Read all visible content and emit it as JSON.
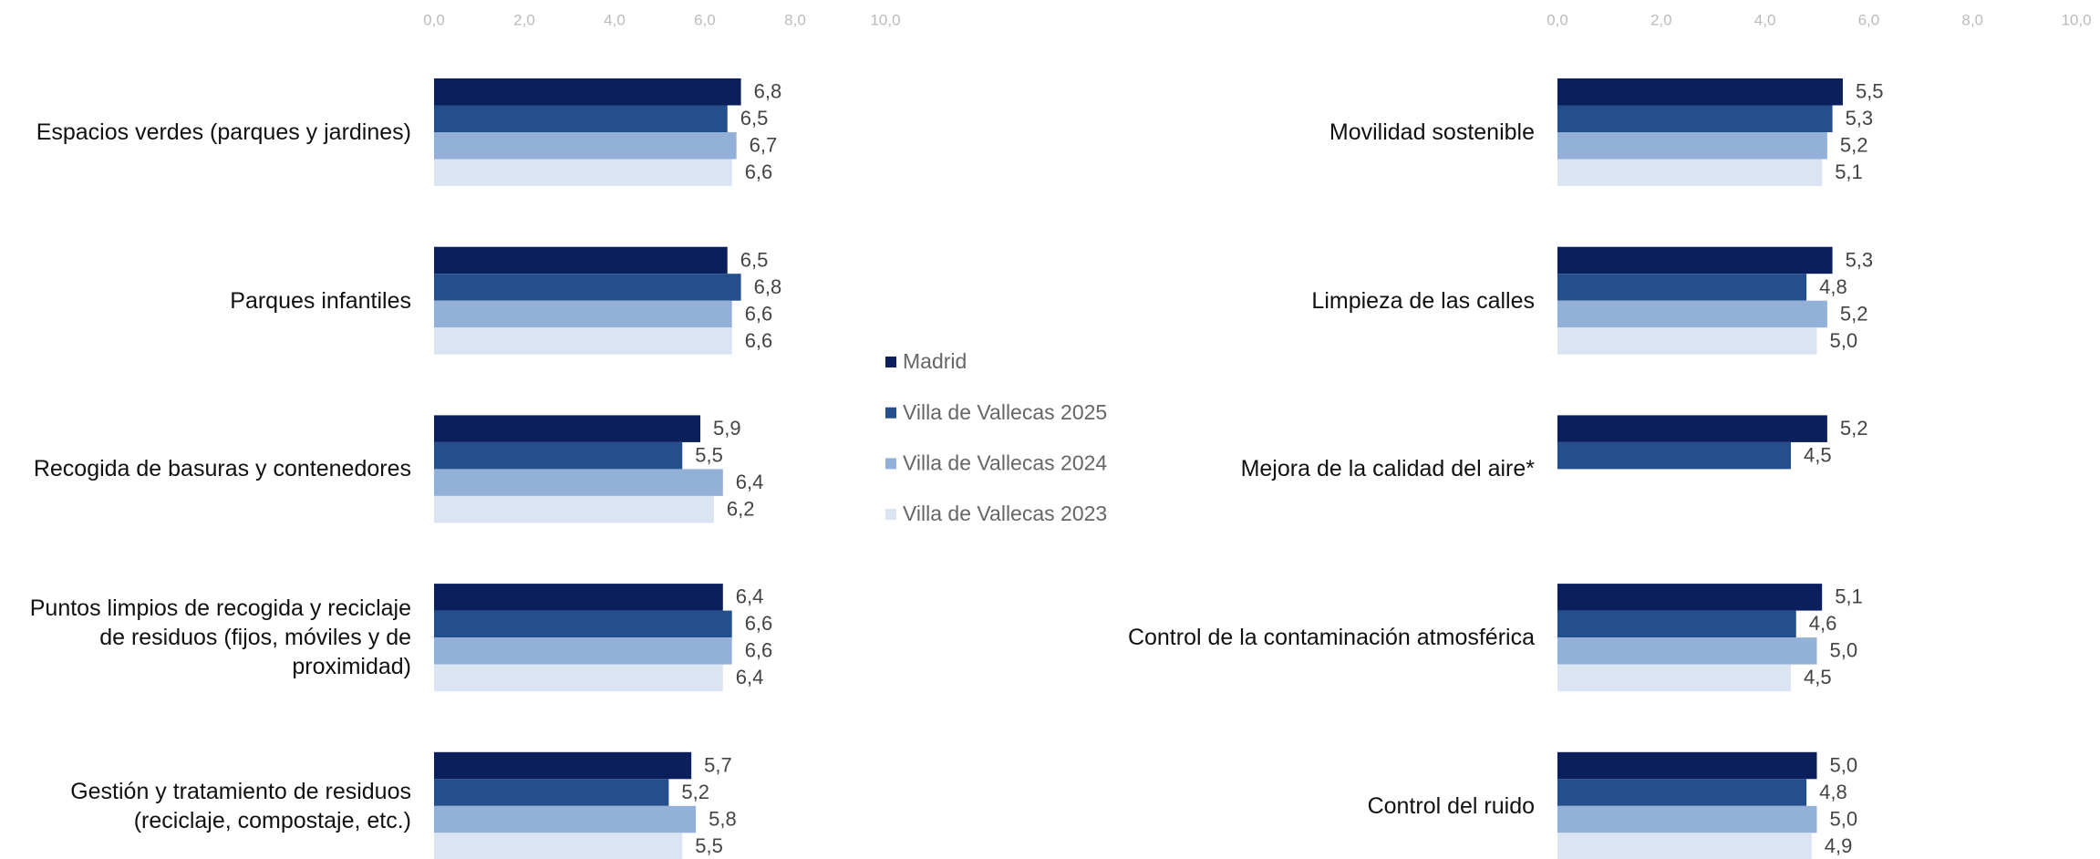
{
  "chart_data": [
    {
      "type": "bar",
      "categories": [
        "Espacios verdes (parques y jardines)",
        "Parques infantiles",
        "Recogida de basuras y contenedores",
        "Puntos limpios de recogida y reciclaje\nde residuos (fijos, móviles y de\nproximidad)",
        "Gestión y tratamiento de residuos\n(reciclaje,  compostaje, etc.)"
      ],
      "series": [
        {
          "name": "Madrid",
          "color": "#0b1f5c",
          "values": [
            6.8,
            6.5,
            5.9,
            6.4,
            5.7
          ],
          "value_labels": [
            "6,8",
            "6,5",
            "5,9",
            "6,4",
            "5,7"
          ]
        },
        {
          "name": "Villa de Vallecas 2025",
          "color": "#254f8c",
          "values": [
            6.5,
            6.8,
            5.5,
            6.6,
            5.2
          ],
          "value_labels": [
            "6,5",
            "6,8",
            "5,5",
            "6,6",
            "5,2"
          ]
        },
        {
          "name": "Villa de Vallecas 2024",
          "color": "#93b0d8",
          "values": [
            6.7,
            6.6,
            6.4,
            6.6,
            5.8
          ],
          "value_labels": [
            "6,7",
            "6,6",
            "6,4",
            "6,6",
            "5,8"
          ]
        },
        {
          "name": "Villa de Vallecas 2023",
          "color": "#dae4f2",
          "values": [
            6.6,
            6.6,
            6.2,
            6.4,
            5.5
          ],
          "value_labels": [
            "6,6",
            "6,6",
            "6,2",
            "6,4",
            "5,5"
          ]
        }
      ],
      "xlim": [
        0,
        10
      ],
      "xticks": [
        {
          "value": 0,
          "label": "0,0"
        },
        {
          "value": 2,
          "label": "2,0"
        },
        {
          "value": 4,
          "label": "4,0"
        },
        {
          "value": 6,
          "label": "6,0"
        },
        {
          "value": 8,
          "label": "8,0"
        },
        {
          "value": 10,
          "label": "10,0"
        }
      ]
    },
    {
      "type": "bar",
      "categories": [
        "Movilidad sostenible",
        "Limpieza de las calles",
        "Mejora de la calidad del aire*",
        "Control de la contaminación atmosférica",
        "Control del ruido"
      ],
      "series": [
        {
          "values": [
            5.5,
            5.3,
            5.2,
            5.1,
            5.0
          ],
          "value_labels": [
            "5,5",
            "5,3",
            "5,2",
            "5,1",
            "5,0"
          ]
        },
        {
          "values": [
            5.3,
            4.8,
            4.5,
            4.6,
            4.8
          ],
          "value_labels": [
            "5,3",
            "4,8",
            "4,5",
            "4,6",
            "4,8"
          ]
        },
        {
          "values": [
            5.2,
            5.2,
            null,
            5.0,
            5.0
          ],
          "value_labels": [
            "5,2",
            "5,2",
            null,
            "5,0",
            "5,0"
          ]
        },
        {
          "values": [
            5.1,
            5.0,
            null,
            4.5,
            4.9
          ],
          "value_labels": [
            "5,1",
            "5,0",
            null,
            "4,5",
            "4,9"
          ]
        }
      ],
      "xlim": [
        0,
        10
      ],
      "xticks": [
        {
          "value": 0,
          "label": "0,0"
        },
        {
          "value": 2,
          "label": "2,0"
        },
        {
          "value": 4,
          "label": "4,0"
        },
        {
          "value": 6,
          "label": "6,0"
        },
        {
          "value": 8,
          "label": "8,0"
        },
        {
          "value": 10,
          "label": "10,0"
        }
      ]
    }
  ]
}
